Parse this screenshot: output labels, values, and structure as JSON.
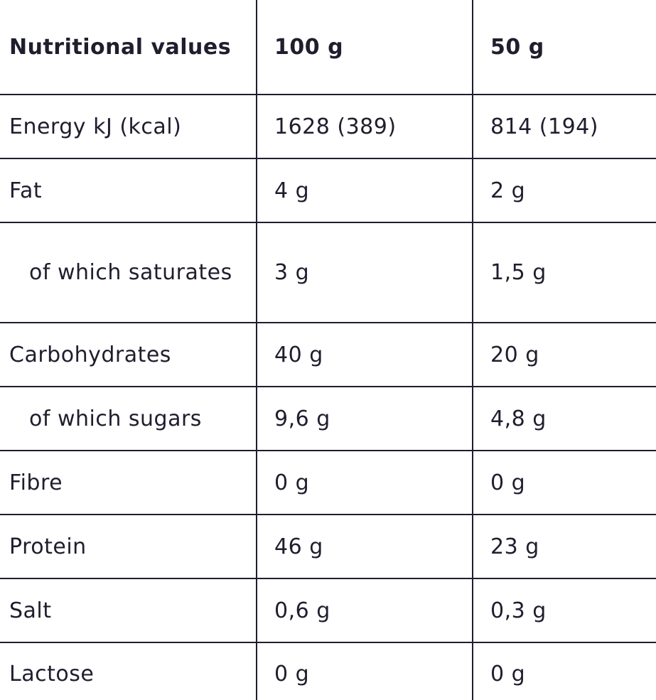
{
  "table": {
    "header": {
      "label": "Nutritional values",
      "col_100g": "100 g",
      "col_50g": "50 g"
    },
    "rows": [
      {
        "label": "Energy kJ (kcal)",
        "v100": "1628 (389)",
        "v50": "814 (194)"
      },
      {
        "label": "Fat",
        "v100": "4 g",
        "v50": "2 g"
      },
      {
        "label": "of which saturates",
        "v100": "3 g",
        "v50": "1,5 g"
      },
      {
        "label": "Carbohydrates",
        "v100": "40 g",
        "v50": "20 g"
      },
      {
        "label": "of which sugars",
        "v100": "9,6 g",
        "v50": "4,8 g"
      },
      {
        "label": "Fibre",
        "v100": "0 g",
        "v50": "0 g"
      },
      {
        "label": "Protein",
        "v100": "46 g",
        "v50": "23 g"
      },
      {
        "label": "Salt",
        "v100": "0,6 g",
        "v50": "0,3 g"
      },
      {
        "label": "Lactose",
        "v100": "0 g",
        "v50": "0 g"
      }
    ]
  },
  "colors": {
    "text": "#1e1e2e",
    "border": "#1e1e2e",
    "background": "#ffffff"
  }
}
